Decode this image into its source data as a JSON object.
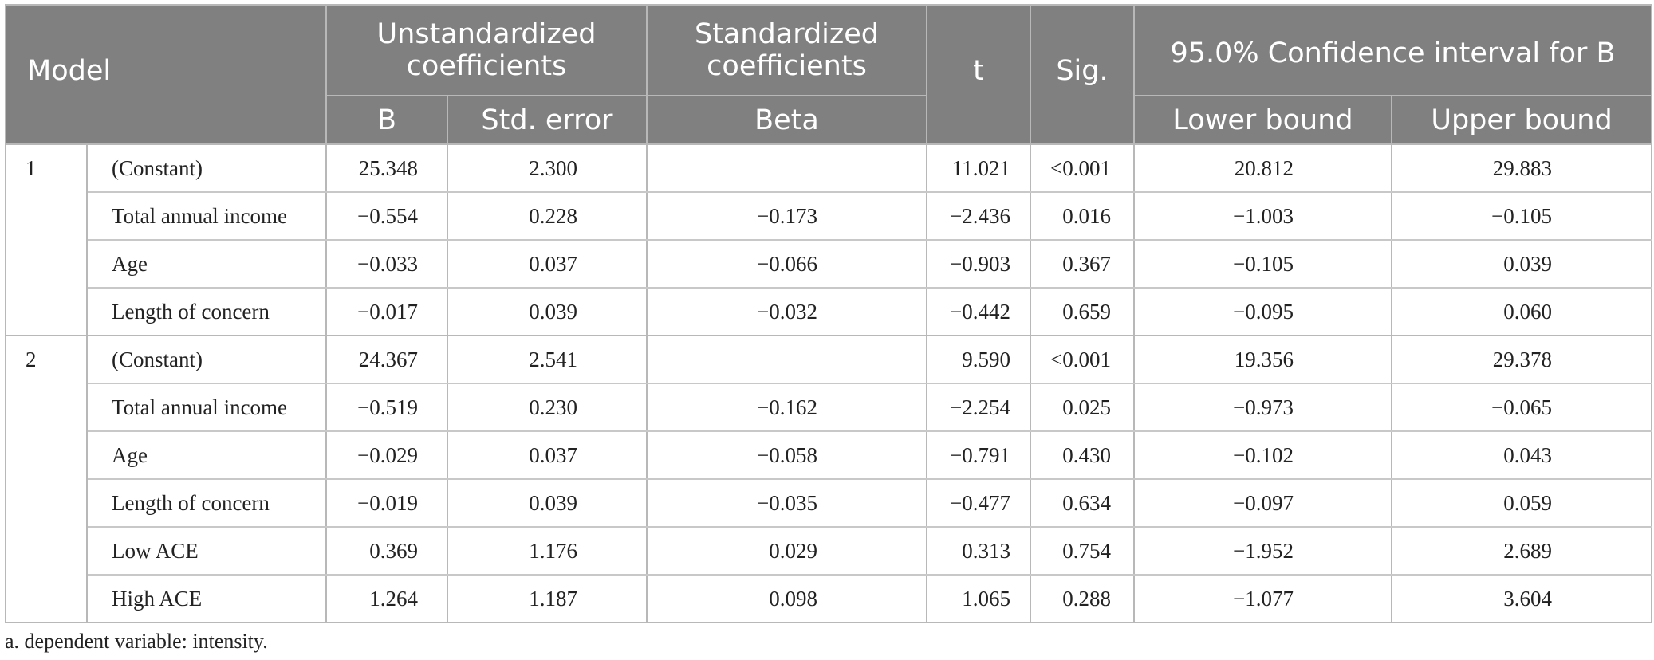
{
  "header": {
    "model": "Model",
    "unstandardized": "Unstandardized coefficients",
    "standardized": "Standardized coefficients",
    "t": "t",
    "sig": "Sig.",
    "ci": "95.0% Confidence interval for B",
    "b": "B",
    "std_error": "Std. error",
    "beta": "Beta",
    "lower": "Lower bound",
    "upper": "Upper bound"
  },
  "models": [
    {
      "label": "1",
      "rows": [
        {
          "variable": "(Constant)",
          "b": "25.348",
          "se": "2.300",
          "beta": "",
          "t": "11.021",
          "sig": "<0.001",
          "lower": "20.812",
          "upper": "29.883"
        },
        {
          "variable": "Total annual income",
          "b": "−0.554",
          "se": "0.228",
          "beta": "−0.173",
          "t": "−2.436",
          "sig": "0.016",
          "lower": "−1.003",
          "upper": "−0.105"
        },
        {
          "variable": "Age",
          "b": "−0.033",
          "se": "0.037",
          "beta": "−0.066",
          "t": "−0.903",
          "sig": "0.367",
          "lower": "−0.105",
          "upper": "0.039"
        },
        {
          "variable": "Length of concern",
          "b": "−0.017",
          "se": "0.039",
          "beta": "−0.032",
          "t": "−0.442",
          "sig": "0.659",
          "lower": "−0.095",
          "upper": "0.060"
        }
      ]
    },
    {
      "label": "2",
      "rows": [
        {
          "variable": "(Constant)",
          "b": "24.367",
          "se": "2.541",
          "beta": "",
          "t": "9.590",
          "sig": "<0.001",
          "lower": "19.356",
          "upper": "29.378"
        },
        {
          "variable": "Total annual income",
          "b": "−0.519",
          "se": "0.230",
          "beta": "−0.162",
          "t": "−2.254",
          "sig": "0.025",
          "lower": "−0.973",
          "upper": "−0.065"
        },
        {
          "variable": "Age",
          "b": "−0.029",
          "se": "0.037",
          "beta": "−0.058",
          "t": "−0.791",
          "sig": "0.430",
          "lower": "−0.102",
          "upper": "0.043"
        },
        {
          "variable": "Length of concern",
          "b": "−0.019",
          "se": "0.039",
          "beta": "−0.035",
          "t": "−0.477",
          "sig": "0.634",
          "lower": "−0.097",
          "upper": "0.059"
        },
        {
          "variable": "Low ACE",
          "b": "0.369",
          "se": "1.176",
          "beta": "0.029",
          "t": "0.313",
          "sig": "0.754",
          "lower": "−1.952",
          "upper": "2.689"
        },
        {
          "variable": "High ACE",
          "b": "1.264",
          "se": "1.187",
          "beta": "0.098",
          "t": "1.065",
          "sig": "0.288",
          "lower": "−1.077",
          "upper": "3.604"
        }
      ]
    }
  ],
  "footnote": "a. dependent variable: intensity."
}
